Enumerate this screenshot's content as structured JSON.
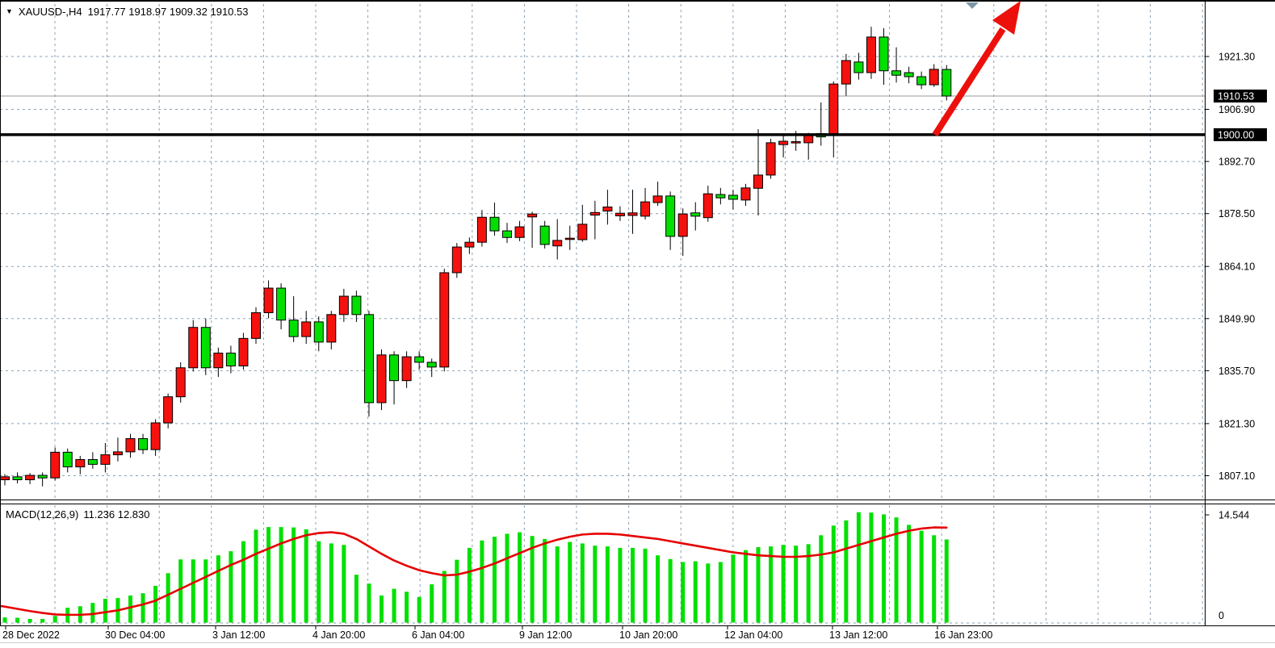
{
  "window": {
    "title_symbol": "XAUUSD-,H4",
    "ohlc": "1917.77 1918.97 1909.32 1910.53"
  },
  "indicator": {
    "name": "MACD(12,26,9)",
    "values": "11.236 12.830"
  },
  "price_axis": {
    "ticks": [
      "1921.30",
      "1906.90",
      "1892.70",
      "1878.50",
      "1864.10",
      "1849.90",
      "1835.70",
      "1821.30",
      "1807.10"
    ],
    "current_price_badge": "1910.53",
    "level_badge": "1900.00"
  },
  "macd_axis": {
    "max": "14.544",
    "zero": "0"
  },
  "time_axis": {
    "labels": [
      "28 Dec 2022",
      "30 Dec 04:00",
      "3 Jan 12:00",
      "4 Jan 20:00",
      "6 Jan 04:00",
      "9 Jan 12:00",
      "10 Jan 20:00",
      "12 Jan 04:00",
      "13 Jan 12:00",
      "16 Jan 23:00"
    ]
  },
  "colors": {
    "bull_candle": "#f5120e",
    "bear_candle": "#00df00",
    "candle_outline": "#000000",
    "macd_bar": "#00e000",
    "signal_line": "#e60000",
    "grid": "#8aa0b4",
    "level_line": "#000000",
    "current_price_line": "#9a9a9a",
    "arrow": "#ec100c",
    "shift_marker": "#7f97a7",
    "badge_bg": "#000000",
    "badge_text": "#ffffff"
  },
  "chart_data": [
    {
      "type": "candlestick",
      "title": "XAUUSD-,H4",
      "ohlc_display": {
        "open": "1917.77",
        "high": "1918.97",
        "low": "1909.32",
        "close": "1910.53"
      },
      "color_convention": "red body = bullish, green body = bearish",
      "y_ticks": [
        1921.3,
        1906.9,
        1892.7,
        1878.5,
        1864.1,
        1849.9,
        1835.7,
        1821.3,
        1807.1
      ],
      "ylim": [
        1800.5,
        1930.5
      ],
      "levels": [
        {
          "price": 1900.0,
          "style": "solid-black-bold",
          "badge": "1900.00"
        },
        {
          "price": 1910.53,
          "style": "thin-gray-current-price",
          "badge": "1910.53"
        }
      ],
      "candles": [
        [
          1806.0,
          1807.5,
          1804.5,
          1806.8
        ],
        [
          1806.8,
          1808.0,
          1805.0,
          1806.0
        ],
        [
          1806.0,
          1807.8,
          1804.8,
          1807.2
        ],
        [
          1807.2,
          1808.0,
          1804.2,
          1806.5
        ],
        [
          1806.5,
          1814.8,
          1805.8,
          1813.5
        ],
        [
          1813.5,
          1814.5,
          1808.0,
          1809.5
        ],
        [
          1809.5,
          1812.5,
          1807.5,
          1811.5
        ],
        [
          1811.5,
          1813.5,
          1809.0,
          1810.2
        ],
        [
          1810.2,
          1816.0,
          1808.0,
          1812.8
        ],
        [
          1812.8,
          1817.5,
          1811.0,
          1813.6
        ],
        [
          1813.6,
          1818.5,
          1812.0,
          1817.2
        ],
        [
          1817.2,
          1818.5,
          1813.0,
          1814.2
        ],
        [
          1814.2,
          1822.5,
          1812.5,
          1821.5
        ],
        [
          1821.5,
          1829.5,
          1820.0,
          1828.6
        ],
        [
          1828.6,
          1838.0,
          1827.0,
          1836.5
        ],
        [
          1836.5,
          1849.5,
          1835.5,
          1847.5
        ],
        [
          1847.5,
          1849.9,
          1834.5,
          1836.5
        ],
        [
          1836.5,
          1842.0,
          1834.0,
          1840.5
        ],
        [
          1840.5,
          1842.5,
          1835.0,
          1837.0
        ],
        [
          1837.0,
          1846.0,
          1836.0,
          1844.5
        ],
        [
          1844.5,
          1853.0,
          1843.0,
          1851.5
        ],
        [
          1851.5,
          1860.3,
          1850.0,
          1858.2
        ],
        [
          1858.2,
          1859.5,
          1847.0,
          1849.5
        ],
        [
          1849.5,
          1856.0,
          1843.5,
          1845.0
        ],
        [
          1845.0,
          1852.0,
          1843.0,
          1849.0
        ],
        [
          1849.0,
          1850.5,
          1841.0,
          1843.5
        ],
        [
          1843.5,
          1852.0,
          1841.5,
          1851.0
        ],
        [
          1851.0,
          1858.0,
          1849.0,
          1856.0
        ],
        [
          1856.0,
          1857.5,
          1849.0,
          1851.0
        ],
        [
          1851.0,
          1852.0,
          1823.2,
          1827.0
        ],
        [
          1827.0,
          1841.5,
          1825.0,
          1840.0
        ],
        [
          1840.0,
          1841.0,
          1826.5,
          1833.0
        ],
        [
          1833.0,
          1841.0,
          1831.0,
          1839.5
        ],
        [
          1839.5,
          1841.0,
          1836.0,
          1838.0
        ],
        [
          1838.0,
          1839.0,
          1834.0,
          1836.7
        ],
        [
          1836.7,
          1863.5,
          1835.5,
          1862.4
        ],
        [
          1862.4,
          1870.5,
          1861.0,
          1869.4
        ],
        [
          1869.4,
          1872.0,
          1867.5,
          1870.7
        ],
        [
          1870.7,
          1879.5,
          1869.5,
          1877.5
        ],
        [
          1877.5,
          1881.5,
          1872.5,
          1873.8
        ],
        [
          1873.8,
          1876.0,
          1870.5,
          1872.0
        ],
        [
          1872.0,
          1876.5,
          1871.0,
          1874.9
        ],
        [
          1877.6,
          1879.0,
          1869.2,
          1878.4
        ],
        [
          1875.1,
          1876.5,
          1869.0,
          1870.1
        ],
        [
          1869.7,
          1877.0,
          1866.0,
          1871.2
        ],
        [
          1871.5,
          1875.2,
          1868.6,
          1871.8
        ],
        [
          1871.4,
          1880.9,
          1870.8,
          1875.6
        ],
        [
          1878.1,
          1882.0,
          1871.5,
          1878.8
        ],
        [
          1879.2,
          1885.0,
          1875.5,
          1880.3
        ],
        [
          1877.9,
          1880.5,
          1876.5,
          1878.6
        ],
        [
          1878.0,
          1885.0,
          1873.0,
          1878.7
        ],
        [
          1877.8,
          1885.5,
          1876.9,
          1881.7
        ],
        [
          1881.5,
          1887.2,
          1880.6,
          1883.3
        ],
        [
          1883.3,
          1884.5,
          1868.6,
          1872.3
        ],
        [
          1872.3,
          1879.9,
          1867.0,
          1878.4
        ],
        [
          1878.7,
          1881.6,
          1873.9,
          1877.8
        ],
        [
          1877.4,
          1886.1,
          1876.3,
          1883.9
        ],
        [
          1883.7,
          1885.5,
          1881.0,
          1882.8
        ],
        [
          1883.5,
          1885.0,
          1879.6,
          1882.4
        ],
        [
          1882.2,
          1886.6,
          1880.6,
          1885.5
        ],
        [
          1885.4,
          1901.5,
          1878.0,
          1889.0
        ],
        [
          1889.0,
          1898.9,
          1888.0,
          1897.8
        ],
        [
          1897.3,
          1899.8,
          1893.8,
          1898.2
        ],
        [
          1897.9,
          1901.0,
          1895.6,
          1898.1
        ],
        [
          1897.8,
          1900.5,
          1893.2,
          1900.0
        ],
        [
          1900.3,
          1908.8,
          1897.0,
          1899.4
        ],
        [
          1900.3,
          1914.5,
          1893.8,
          1913.8
        ],
        [
          1913.8,
          1922.0,
          1910.6,
          1920.2
        ],
        [
          1919.8,
          1922.3,
          1915.0,
          1916.9
        ],
        [
          1916.9,
          1929.4,
          1915.2,
          1926.6
        ],
        [
          1926.6,
          1929.0,
          1913.6,
          1917.4
        ],
        [
          1917.4,
          1923.8,
          1914.2,
          1916.2
        ],
        [
          1916.9,
          1918.5,
          1914.0,
          1915.8
        ],
        [
          1915.8,
          1917.2,
          1912.4,
          1913.6
        ],
        [
          1913.6,
          1919.2,
          1913.0,
          1917.8
        ],
        [
          1917.77,
          1918.97,
          1909.32,
          1910.53
        ]
      ]
    },
    {
      "type": "bar",
      "name": "MACD(12,26,9)",
      "macd_value": 11.236,
      "signal_value": 12.83,
      "ylim": [
        0,
        14.544
      ],
      "values": [
        0.75,
        0.7,
        0.55,
        0.55,
        0.95,
        2.05,
        2.25,
        2.7,
        3.25,
        3.35,
        3.7,
        4.0,
        5.0,
        6.7,
        8.55,
        8.55,
        8.55,
        9.1,
        9.65,
        11.0,
        12.55,
        12.9,
        12.9,
        12.85,
        12.6,
        11.0,
        10.7,
        10.5,
        6.5,
        5.3,
        3.7,
        4.6,
        4.2,
        3.5,
        5.2,
        7.0,
        8.5,
        10.1,
        11.1,
        11.6,
        12.0,
        12.2,
        11.7,
        11.3,
        10.3,
        10.9,
        10.7,
        10.4,
        10.3,
        10.1,
        10.1,
        10.0,
        9.1,
        8.6,
        8.2,
        8.3,
        8.0,
        8.2,
        9.2,
        9.8,
        10.2,
        10.3,
        10.5,
        10.4,
        10.6,
        11.8,
        13.1,
        13.8,
        14.9,
        14.85,
        14.6,
        14.2,
        13.2,
        12.4,
        11.8,
        11.236
      ],
      "signal_series": [
        2.2,
        1.9,
        1.6,
        1.35,
        1.15,
        1.1,
        1.1,
        1.2,
        1.45,
        1.7,
        2.1,
        2.5,
        3.0,
        3.8,
        4.6,
        5.4,
        6.2,
        7.0,
        7.8,
        8.5,
        9.3,
        10.0,
        10.7,
        11.3,
        11.8,
        12.1,
        12.2,
        12.0,
        11.3,
        10.3,
        9.3,
        8.4,
        7.7,
        7.1,
        6.7,
        6.4,
        6.5,
        6.9,
        7.4,
        8.0,
        8.7,
        9.4,
        10.1,
        10.7,
        11.2,
        11.6,
        11.9,
        12.0,
        12.0,
        11.9,
        11.7,
        11.5,
        11.3,
        11.0,
        10.7,
        10.4,
        10.1,
        9.8,
        9.5,
        9.3,
        9.1,
        9.0,
        8.9,
        8.9,
        9.0,
        9.2,
        9.5,
        10.0,
        10.5,
        11.0,
        11.5,
        12.0,
        12.4,
        12.7,
        12.85,
        12.83
      ]
    }
  ],
  "annotations": {
    "trend_arrow": {
      "shape": "arrow-up-right",
      "color": "#ec100c",
      "anchor_price": 1900.0
    },
    "shift_marker": {
      "shape": "triangle-down",
      "color": "#7f97a7"
    }
  }
}
